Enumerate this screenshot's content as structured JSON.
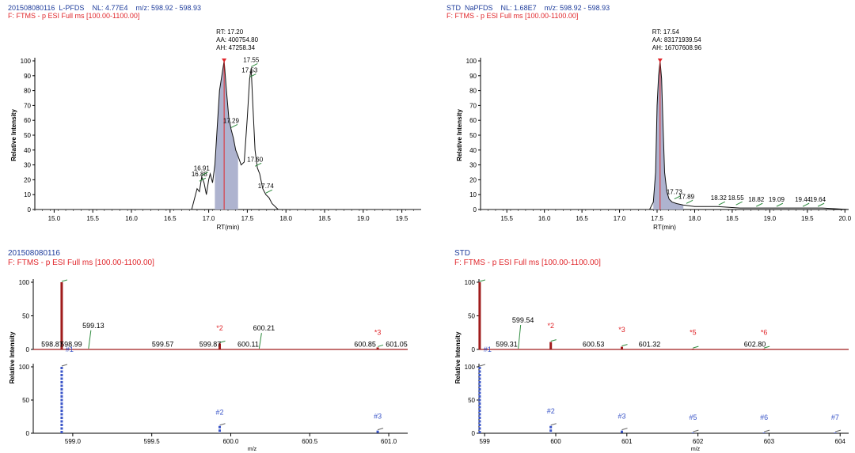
{
  "panels": [
    {
      "id": "tl",
      "header": {
        "line1_id": "201508080116",
        "line1_name": "L-PFDS",
        "line1_nl": "NL: 4.77E4",
        "line1_mz": "m/z: 598.92 - 598.93",
        "line2": "F: FTMS - p ESI Full ms [100.00-1100.00]"
      }
    },
    {
      "id": "tr",
      "header": {
        "line1_id": "STD",
        "line1_name": "NaPFDS",
        "line1_nl": "NL: 1.68E7",
        "line1_mz": "m/z: 598.92 - 598.93",
        "line2": "F: FTMS - p ESI Full ms [100.00-1100.00]"
      }
    },
    {
      "id": "bl",
      "header": {
        "line1_id": "201508080116",
        "line1_name": "",
        "line1_nl": "",
        "line1_mz": "",
        "line2": "F: FTMS - p ESI Full ms [100.00-1100.00]"
      }
    },
    {
      "id": "br",
      "header": {
        "line1_id": "STD",
        "line1_name": "",
        "line1_nl": "",
        "line1_mz": "",
        "line2": "F: FTMS - p ESI Full ms [100.00-1100.00]"
      }
    }
  ],
  "colors": {
    "blue_text": "#1f3d9c",
    "red_text": "#e0262b",
    "fill": "#aeb3cf",
    "red_stick": "#a01c1c",
    "blue_stick": "#3a55c8",
    "green_tick": "#2e8b3e"
  },
  "chart_data": [
    {
      "type": "line",
      "panel": "tl",
      "xlabel": "RT(min)",
      "ylabel": "Relative Intensity",
      "xlim": [
        14.75,
        19.75
      ],
      "ylim": [
        0,
        100
      ],
      "xticks": [
        "15.0",
        "15.5",
        "16.0",
        "16.5",
        "17.0",
        "17.5",
        "18.0",
        "18.5",
        "19.0",
        "19.5"
      ],
      "yticks": [
        "0",
        "10",
        "20",
        "30",
        "40",
        "50",
        "60",
        "70",
        "80",
        "90",
        "100"
      ],
      "peak_info": {
        "rt": "RT: 17.20",
        "aa": "AA: 400754.80",
        "ah": "AH: 47258.34"
      },
      "series": [
        {
          "x": [
            16.78,
            16.82,
            16.85,
            16.88,
            16.91,
            16.94,
            16.97,
            17.0,
            17.02,
            17.05,
            17.08,
            17.11,
            17.14,
            17.17,
            17.2,
            17.23,
            17.26,
            17.29,
            17.32,
            17.35,
            17.38,
            17.42,
            17.46,
            17.5,
            17.53,
            17.55,
            17.57,
            17.6,
            17.63,
            17.66,
            17.7,
            17.74,
            17.78,
            17.82,
            17.86,
            17.9
          ],
          "y": [
            0,
            8,
            14,
            12,
            22,
            18,
            10,
            20,
            24,
            18,
            30,
            55,
            80,
            90,
            100,
            80,
            62,
            54,
            48,
            40,
            36,
            30,
            32,
            62,
            88,
            95,
            72,
            40,
            28,
            24,
            14,
            10,
            8,
            4,
            2,
            0
          ]
        }
      ],
      "shaded": {
        "from": 17.08,
        "to": 17.4
      },
      "peak_labels": [
        {
          "x": 16.88,
          "y": 18,
          "text": "16.88"
        },
        {
          "x": 16.91,
          "y": 22,
          "text": "16.91"
        },
        {
          "x": 17.29,
          "y": 54,
          "text": "17.29"
        },
        {
          "x": 17.53,
          "y": 88,
          "text": "17.53"
        },
        {
          "x": 17.55,
          "y": 95,
          "text": "17.55"
        },
        {
          "x": 17.6,
          "y": 28,
          "text": "17.60"
        },
        {
          "x": 17.74,
          "y": 10,
          "text": "17.74"
        }
      ]
    },
    {
      "type": "line",
      "panel": "tr",
      "xlabel": "RT(min)",
      "ylabel": "Relative Intensity",
      "xlim": [
        15.15,
        20.05
      ],
      "ylim": [
        0,
        100
      ],
      "xticks": [
        "15.5",
        "16.0",
        "16.5",
        "17.0",
        "17.5",
        "18.0",
        "18.5",
        "19.0",
        "19.5",
        "20.0"
      ],
      "yticks": [
        "0",
        "10",
        "20",
        "30",
        "40",
        "50",
        "60",
        "70",
        "80",
        "90",
        "100"
      ],
      "peak_info": {
        "rt": "RT: 17.54",
        "aa": "AA: 83171939.54",
        "ah": "AH: 16707608.96"
      },
      "series": [
        {
          "x": [
            17.4,
            17.45,
            17.48,
            17.5,
            17.52,
            17.54,
            17.56,
            17.58,
            17.6,
            17.63,
            17.66,
            17.7,
            17.76,
            17.85,
            18.0,
            18.3,
            18.6,
            19.0,
            19.4,
            19.7
          ],
          "y": [
            0,
            5,
            25,
            70,
            90,
            100,
            88,
            55,
            25,
            12,
            7,
            5,
            4,
            3,
            2,
            2,
            1,
            1,
            1,
            1
          ]
        }
      ],
      "shaded": {
        "from": 17.42,
        "to": 17.85
      },
      "peak_labels": [
        {
          "x": 17.73,
          "y": 6,
          "text": "17.73"
        },
        {
          "x": 17.89,
          "y": 3,
          "text": "17.89"
        },
        {
          "x": 18.32,
          "y": 2,
          "text": "18.32"
        },
        {
          "x": 18.55,
          "y": 2,
          "text": "18.55"
        },
        {
          "x": 18.82,
          "y": 1,
          "text": "18.82"
        },
        {
          "x": 19.09,
          "y": 1,
          "text": "19.09"
        },
        {
          "x": 19.44,
          "y": 1,
          "text": "19.44"
        },
        {
          "x": 19.64,
          "y": 1,
          "text": "19.64"
        }
      ]
    },
    {
      "type": "bar",
      "panel": "bl",
      "xlabel": "m/z",
      "ylabel": "Relative Intensity",
      "xlim": [
        598.75,
        601.12
      ],
      "ylim": [
        0,
        100
      ],
      "xticks": [
        "599.0",
        "599.5",
        "600.0",
        "600.5",
        "601.0"
      ],
      "yticks": [
        "0",
        "50",
        "100"
      ],
      "upper": {
        "sticks": [
          {
            "x": 598.93,
            "y": 100
          },
          {
            "x": 599.93,
            "y": 9
          },
          {
            "x": 600.93,
            "y": 3
          }
        ],
        "labels": [
          {
            "x": 598.87,
            "y": 4,
            "text": "598.87",
            "color": "black"
          },
          {
            "x": 598.99,
            "y": 4,
            "text": "598.99",
            "color": "black"
          },
          {
            "x": 599.13,
            "y": 32,
            "text": "599.13",
            "color": "black"
          },
          {
            "x": 599.57,
            "y": 4,
            "text": "599.57",
            "color": "black"
          },
          {
            "x": 599.87,
            "y": 4,
            "text": "599.87",
            "color": "black"
          },
          {
            "x": 599.93,
            "y": 28,
            "text": "*2",
            "color": "red"
          },
          {
            "x": 600.11,
            "y": 4,
            "text": "600.11",
            "color": "black"
          },
          {
            "x": 600.21,
            "y": 28,
            "text": "600.21",
            "color": "black"
          },
          {
            "x": 600.85,
            "y": 4,
            "text": "600.85",
            "color": "black"
          },
          {
            "x": 600.93,
            "y": 22,
            "text": "*3",
            "color": "red"
          },
          {
            "x": 601.05,
            "y": 4,
            "text": "601.05",
            "color": "black"
          }
        ],
        "marker1": "#1"
      },
      "lower": {
        "sticks": [
          {
            "x": 598.93,
            "y": 100
          },
          {
            "x": 599.93,
            "y": 11
          },
          {
            "x": 600.93,
            "y": 4
          }
        ],
        "labels": [
          {
            "x": 599.93,
            "y": 28,
            "text": "#2"
          },
          {
            "x": 600.93,
            "y": 22,
            "text": "#3"
          }
        ]
      }
    },
    {
      "type": "bar",
      "panel": "br",
      "xlabel": "m/z",
      "ylabel": "Relative Intensity",
      "xlim": [
        598.92,
        604.12
      ],
      "ylim": [
        0,
        100
      ],
      "xticks": [
        "599",
        "600",
        "601",
        "602",
        "603",
        "604"
      ],
      "yticks": [
        "0",
        "50",
        "100"
      ],
      "upper": {
        "sticks": [
          {
            "x": 598.93,
            "y": 100
          },
          {
            "x": 599.93,
            "y": 11
          },
          {
            "x": 600.93,
            "y": 4
          },
          {
            "x": 601.93,
            "y": 1
          },
          {
            "x": 602.93,
            "y": 1
          }
        ],
        "labels": [
          {
            "x": 599.31,
            "y": 4,
            "text": "599.31",
            "color": "black"
          },
          {
            "x": 599.54,
            "y": 40,
            "text": "599.54",
            "color": "black"
          },
          {
            "x": 599.93,
            "y": 32,
            "text": "*2",
            "color": "red"
          },
          {
            "x": 600.53,
            "y": 4,
            "text": "600.53",
            "color": "black"
          },
          {
            "x": 600.93,
            "y": 26,
            "text": "*3",
            "color": "red"
          },
          {
            "x": 601.32,
            "y": 4,
            "text": "601.32",
            "color": "black"
          },
          {
            "x": 601.93,
            "y": 22,
            "text": "*5",
            "color": "red"
          },
          {
            "x": 602.8,
            "y": 4,
            "text": "602.80",
            "color": "black"
          },
          {
            "x": 602.93,
            "y": 22,
            "text": "*6",
            "color": "red"
          }
        ],
        "marker1": "#1"
      },
      "lower": {
        "sticks": [
          {
            "x": 598.93,
            "y": 100
          },
          {
            "x": 599.93,
            "y": 11
          },
          {
            "x": 600.93,
            "y": 4
          },
          {
            "x": 601.93,
            "y": 1
          },
          {
            "x": 602.93,
            "y": 1
          },
          {
            "x": 603.93,
            "y": 1
          }
        ],
        "labels": [
          {
            "x": 599.93,
            "y": 30,
            "text": "#2"
          },
          {
            "x": 600.93,
            "y": 22,
            "text": "#3"
          },
          {
            "x": 601.93,
            "y": 20,
            "text": "#5"
          },
          {
            "x": 602.93,
            "y": 20,
            "text": "#6"
          },
          {
            "x": 603.93,
            "y": 20,
            "text": "#7"
          }
        ]
      }
    }
  ]
}
